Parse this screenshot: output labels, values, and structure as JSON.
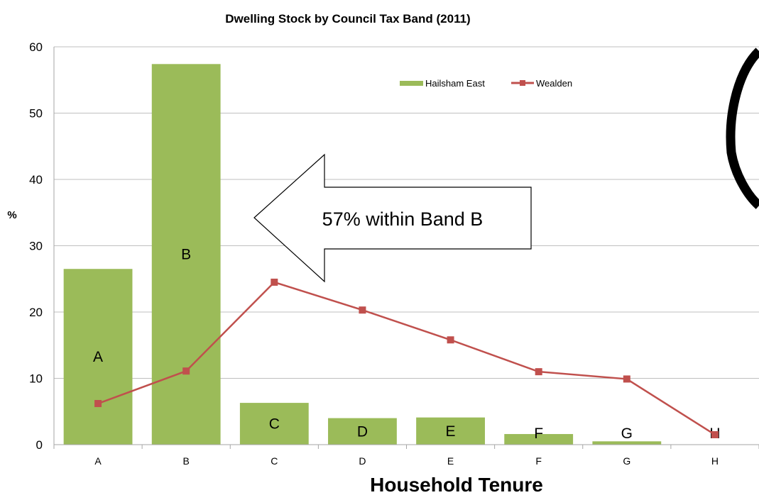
{
  "chart_data": {
    "type": "bar",
    "title": "Dwelling  Stock by Council Tax Band (2011)",
    "xlabel": "Household Tenure",
    "ylabel": "%",
    "categories": [
      "A",
      "B",
      "C",
      "D",
      "E",
      "F",
      "G",
      "H"
    ],
    "ylim": [
      0,
      60
    ],
    "yticks": [
      "0",
      "10",
      "20",
      "30",
      "40",
      "50",
      "60"
    ],
    "grid": true,
    "legend_position": "top-right",
    "series": [
      {
        "name": "Hailsham East",
        "type": "bar",
        "color": "#9BBB59",
        "values": [
          26.5,
          57.4,
          6.3,
          4.0,
          4.1,
          1.6,
          0.5,
          0.0
        ],
        "data_labels": [
          "A",
          "B",
          "C",
          "D",
          "E",
          "F",
          "G",
          "H"
        ]
      },
      {
        "name": "Wealden",
        "type": "line",
        "color": "#C0504D",
        "values": [
          6.2,
          11.1,
          24.5,
          20.3,
          15.8,
          11.0,
          9.9,
          1.5
        ]
      }
    ],
    "annotation": "57% within Band B"
  }
}
